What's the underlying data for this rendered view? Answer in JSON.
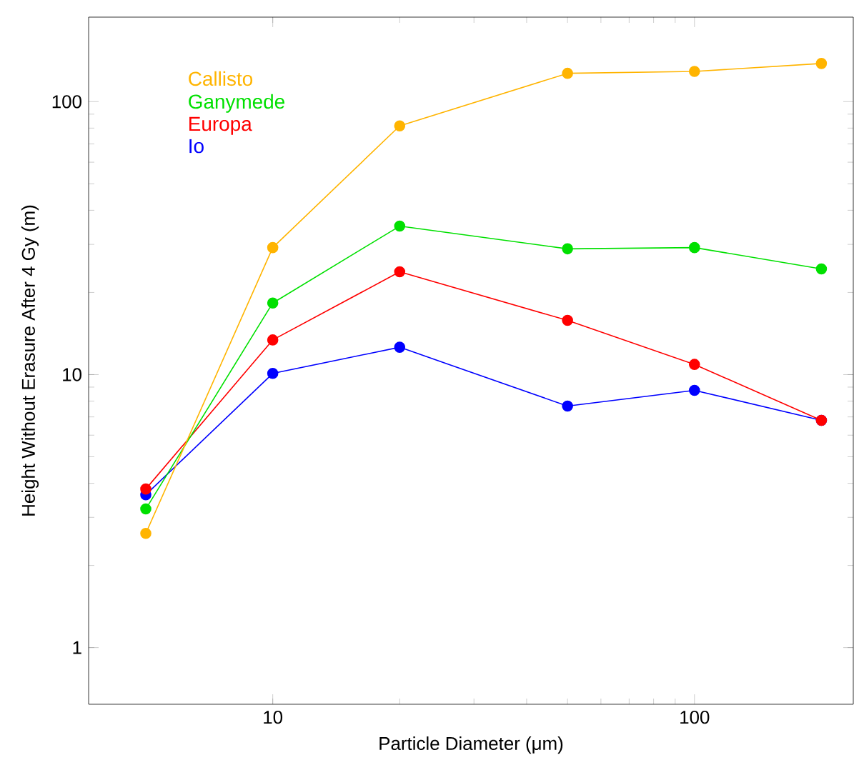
{
  "chart_data": {
    "type": "line",
    "xlabel": "Particle Diameter (μm)",
    "ylabel": "Height Without Erasure After 4 Gy (m)",
    "x": [
      5,
      10,
      20,
      50,
      100,
      200
    ],
    "series": [
      {
        "name": "Callisto",
        "color": "#ffb400",
        "values": [
          2.62,
          29.2,
          81.5,
          127,
          129,
          138
        ]
      },
      {
        "name": "Ganymede",
        "color": "#00e000",
        "values": [
          3.22,
          18.3,
          35.0,
          28.9,
          29.2,
          24.4
        ]
      },
      {
        "name": "Europa",
        "color": "#ff0000",
        "values": [
          3.81,
          13.4,
          23.8,
          15.8,
          10.9,
          6.8
        ]
      },
      {
        "name": "Io",
        "color": "#0000ff",
        "values": [
          3.63,
          10.1,
          12.6,
          7.67,
          8.76,
          6.8
        ]
      }
    ],
    "log": "xy",
    "xlim": [
      3.66,
      238
    ],
    "ylim": [
      0.62,
      204
    ],
    "xticks": [
      10,
      100
    ],
    "yticks": [
      1,
      10,
      100
    ],
    "marker": "circle",
    "legend": "top left",
    "grid": false
  }
}
